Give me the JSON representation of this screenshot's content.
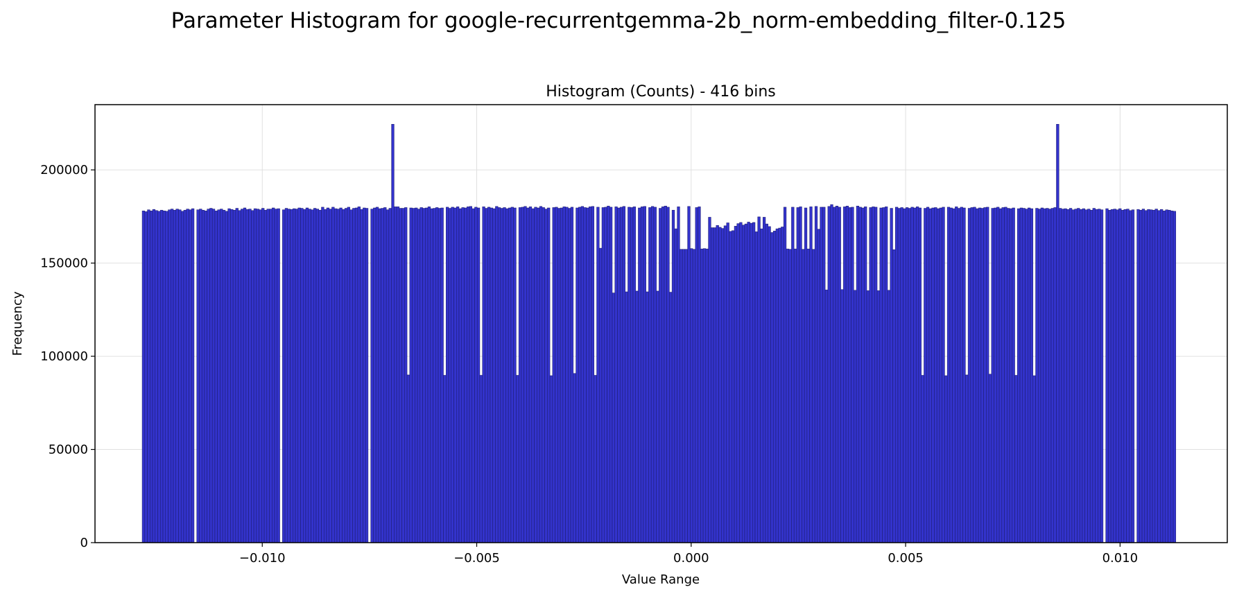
{
  "chart_data": {
    "type": "bar",
    "title": "Parameter Histogram for google-recurrentgemma-2b_norm-embedding_filter-0.125",
    "subtitle": "Histogram (Counts) - 416 bins",
    "xlabel": "Value Range",
    "ylabel": "Frequency",
    "xlim": [
      -0.0139,
      0.0125
    ],
    "ylim": [
      0,
      235000
    ],
    "bin_range": [
      -0.0128,
      0.0113
    ],
    "bin_count": 416,
    "grid": true,
    "legend": "none",
    "x_ticks": [
      -0.01,
      -0.005,
      0.0,
      0.005,
      0.01
    ],
    "x_tick_labels": [
      "−0.010",
      "−0.005",
      "0.000",
      "0.005",
      "0.010"
    ],
    "y_ticks": [
      0,
      50000,
      100000,
      150000,
      200000
    ],
    "y_tick_labels": [
      "0",
      "50000",
      "100000",
      "150000",
      "200000"
    ],
    "colors": {
      "bar_fill": "#3333cc",
      "bar_edge": "#1a1a66",
      "grid": "#e0e0e0"
    },
    "series": [
      {
        "values": [
          178000,
          177600,
          178600,
          178000,
          178800,
          178200,
          177800,
          178400,
          178000,
          177800,
          178600,
          179000,
          178400,
          179000,
          178600,
          177800,
          178400,
          179000,
          178600,
          179200,
          0,
          178600,
          179000,
          178400,
          178000,
          179000,
          179400,
          179000,
          178000,
          178600,
          179000,
          178400,
          177800,
          179200,
          178800,
          178400,
          179400,
          178200,
          179000,
          179600,
          178800,
          179000,
          178200,
          179200,
          179000,
          178600,
          179400,
          178400,
          179000,
          179000,
          179600,
          179000,
          179200,
          0,
          178600,
          179400,
          179000,
          178800,
          179200,
          179000,
          179600,
          179400,
          178800,
          179600,
          179000,
          178600,
          179400,
          179000,
          178400,
          180000,
          178800,
          179600,
          179000,
          180000,
          179200,
          179000,
          179600,
          178800,
          179400,
          180000,
          178600,
          179400,
          179600,
          180200,
          178800,
          179600,
          179400,
          0,
          179000,
          179600,
          180000,
          179200,
          179400,
          179800,
          178600,
          179400,
          224500,
          180200,
          180200,
          179400,
          179400,
          179800,
          90000,
          179600,
          179400,
          179600,
          179000,
          179800,
          179400,
          179600,
          180200,
          179200,
          179400,
          179800,
          179400,
          179600,
          89800,
          180000,
          179400,
          180000,
          179600,
          180200,
          179200,
          179800,
          179600,
          180200,
          180400,
          179200,
          180000,
          179600,
          89800,
          180200,
          179400,
          180000,
          179600,
          179200,
          180400,
          179800,
          179400,
          179800,
          179200,
          179600,
          180000,
          179600,
          89800,
          179800,
          180000,
          180400,
          179600,
          180200,
          179200,
          180000,
          179600,
          180400,
          179800,
          179000,
          179600,
          89600,
          179800,
          180000,
          179400,
          179600,
          180200,
          180000,
          179400,
          180000,
          90800,
          179600,
          180000,
          180400,
          179800,
          179600,
          180200,
          180400,
          89800,
          180000,
          158000,
          179800,
          180000,
          180600,
          180000,
          134000,
          180200,
          179600,
          180000,
          180400,
          134600,
          180000,
          179800,
          180200,
          135000,
          179600,
          180200,
          180400,
          134600,
          179800,
          180400,
          180000,
          135000,
          179400,
          180200,
          180600,
          180000,
          134400,
          178400,
          168400,
          180200,
          157400,
          157400,
          157400,
          180400,
          157800,
          157400,
          179800,
          180200,
          157600,
          157800,
          157600,
          174600,
          169000,
          169000,
          170200,
          169200,
          168600,
          170000,
          171600,
          167000,
          167400,
          169800,
          171200,
          171800,
          170400,
          171000,
          172000,
          171400,
          171800,
          166800,
          174800,
          168400,
          174600,
          171000,
          169600,
          166400,
          167200,
          168400,
          168800,
          169400,
          180000,
          157600,
          157400,
          180000,
          157600,
          179800,
          180200,
          157400,
          179600,
          157600,
          180200,
          157400,
          180400,
          168200,
          180000,
          180000,
          135600,
          180400,
          181400,
          180000,
          180600,
          180000,
          135800,
          180200,
          180600,
          179800,
          180000,
          135400,
          180600,
          180000,
          179600,
          180200,
          135200,
          179800,
          180200,
          180000,
          135200,
          179600,
          179800,
          180200,
          135400,
          179400,
          157200,
          180000,
          179400,
          179800,
          179200,
          179800,
          179400,
          180000,
          179600,
          180200,
          179600,
          89800,
          179400,
          180000,
          179200,
          179600,
          179800,
          179200,
          179600,
          180000,
          89600,
          180000,
          179600,
          179200,
          180200,
          179400,
          180000,
          179600,
          90000,
          179400,
          179800,
          180000,
          179200,
          179600,
          179400,
          179800,
          180000,
          90400,
          179400,
          179600,
          180000,
          179200,
          179800,
          180000,
          179400,
          179200,
          179600,
          89800,
          179200,
          179600,
          179400,
          179000,
          179600,
          179200,
          89600,
          179400,
          179000,
          179600,
          179200,
          179400,
          179000,
          179400,
          179800,
          224500,
          179400,
          179000,
          179200,
          178800,
          179400,
          178600,
          179000,
          179400,
          178800,
          179200,
          178600,
          179000,
          178400,
          179400,
          178800,
          179000,
          178600,
          0,
          179200,
          178400,
          178800,
          179000,
          178600,
          179200,
          178400,
          178800,
          179000,
          178200,
          178600,
          0,
          178800,
          178400,
          179000,
          178200,
          178800,
          178600,
          178400,
          179000,
          178200,
          178800,
          178000,
          178600,
          178400,
          178000,
          177800
        ]
      }
    ]
  }
}
